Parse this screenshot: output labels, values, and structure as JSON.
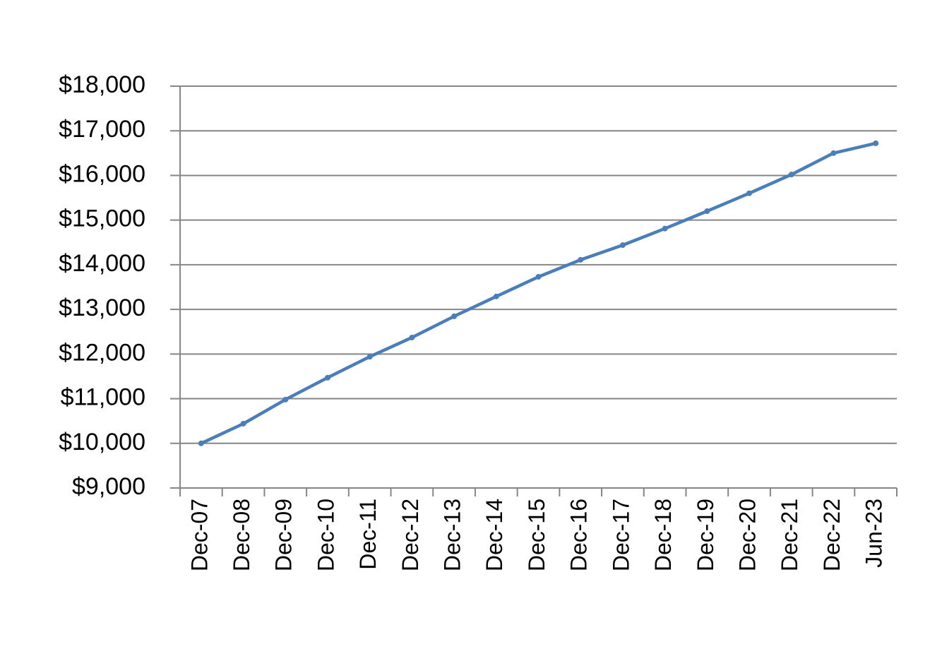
{
  "chart_data": {
    "type": "line",
    "categories": [
      "Dec-07",
      "Dec-08",
      "Dec-09",
      "Dec-10",
      "Dec-11",
      "Dec-12",
      "Dec-13",
      "Dec-14",
      "Dec-15",
      "Dec-16",
      "Dec-17",
      "Dec-18",
      "Dec-19",
      "Dec-20",
      "Dec-21",
      "Dec-22",
      "Jun-23"
    ],
    "values": [
      10000,
      10440,
      10980,
      11470,
      11940,
      12370,
      12845,
      13290,
      13730,
      14110,
      14440,
      14810,
      15200,
      15600,
      16020,
      16500,
      16720
    ],
    "color": "#4a7ebb",
    "ylim": [
      9000,
      18000
    ],
    "yticks": [
      {
        "value": 9000,
        "label": "$9,000"
      },
      {
        "value": 10000,
        "label": "$10,000"
      },
      {
        "value": 11000,
        "label": "$11,000"
      },
      {
        "value": 12000,
        "label": "$12,000"
      },
      {
        "value": 13000,
        "label": "$13,000"
      },
      {
        "value": 14000,
        "label": "$14,000"
      },
      {
        "value": 15000,
        "label": "$15,000"
      },
      {
        "value": 16000,
        "label": "$16,000"
      },
      {
        "value": 17000,
        "label": "$17,000"
      },
      {
        "value": 18000,
        "label": "$18,000"
      }
    ],
    "grid": true
  }
}
